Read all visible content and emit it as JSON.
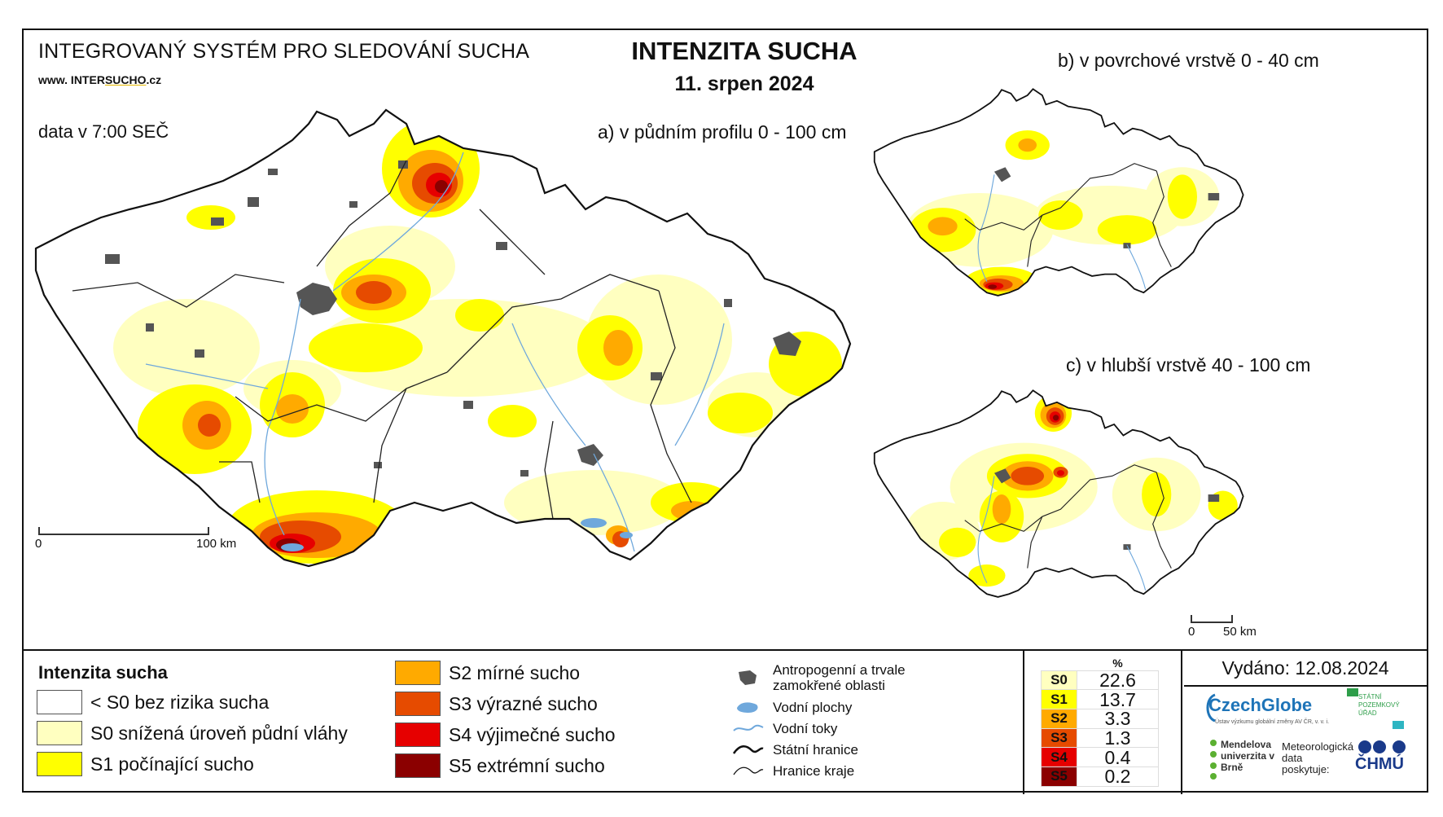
{
  "header": {
    "system_title": "INTEGROVANÝ SYSTÉM PRO SLEDOVÁNÍ SUCHA",
    "url_prefix": "www. INTER",
    "url_highlight": "SUCHO",
    "url_suffix": ".cz",
    "data_time": "data v 7:00 SEČ",
    "main_title": "INTENZITA SUCHA",
    "date": "11. srpen 2024"
  },
  "maps": {
    "a_label": "a) v půdním profilu 0 - 100 cm",
    "b_label": "b) v povrchové vrstvě 0 - 40 cm",
    "c_label": "c) v hlubší vrstvě 40 - 100 cm",
    "scale_main": {
      "start": "0",
      "end": "100 km"
    },
    "scale_small": {
      "start": "0",
      "end": "50 km"
    }
  },
  "legend": {
    "title": "Intenzita sucha",
    "classes": [
      {
        "label": "< S0 bez rizika sucha",
        "color": "#ffffff"
      },
      {
        "label": "S0 snížená úroveň půdní vláhy",
        "color": "#ffffc0"
      },
      {
        "label": "S1 počínající sucho",
        "color": "#ffff00"
      },
      {
        "label": "S2 mírné sucho",
        "color": "#ffaa00"
      },
      {
        "label": "S3 výrazné sucho",
        "color": "#e64b00"
      },
      {
        "label": "S4 výjimečné sucho",
        "color": "#e60000"
      },
      {
        "label": "S5 extrémní sucho",
        "color": "#8b0000"
      }
    ],
    "symbols": [
      {
        "label": "Antropogenní a trvale zamokřené oblasti",
        "icon": "urban-area-icon"
      },
      {
        "label": "Vodní plochy",
        "icon": "water-body-icon"
      },
      {
        "label": "Vodní toky",
        "icon": "river-icon"
      },
      {
        "label": "Státní hranice",
        "icon": "state-border-icon"
      },
      {
        "label": "Hranice kraje",
        "icon": "region-border-icon"
      }
    ]
  },
  "stats": {
    "header": "%",
    "rows": [
      {
        "class": "S0",
        "value": "22.6",
        "color": "#ffffc0"
      },
      {
        "class": "S1",
        "value": "13.7",
        "color": "#ffff00"
      },
      {
        "class": "S2",
        "value": "3.3",
        "color": "#ffaa00"
      },
      {
        "class": "S3",
        "value": "1.3",
        "color": "#e64b00"
      },
      {
        "class": "S4",
        "value": "0.4",
        "color": "#e60000"
      },
      {
        "class": "S5",
        "value": "0.2",
        "color": "#8b0000"
      }
    ]
  },
  "footer": {
    "issued": "Vydáno: 12.08.2024",
    "czechglobe": "CzechGlobe",
    "czechglobe_sub": "Ústav výzkumu globální změny AV ČR, v. v. i.",
    "spu": "STÁTNÍ POZEMKOVÝ ÚŘAD",
    "mendel": "Mendelova univerzita v Brně",
    "met_note": "Meteorologická data poskytuje:",
    "chmu": "ČHMÚ"
  }
}
